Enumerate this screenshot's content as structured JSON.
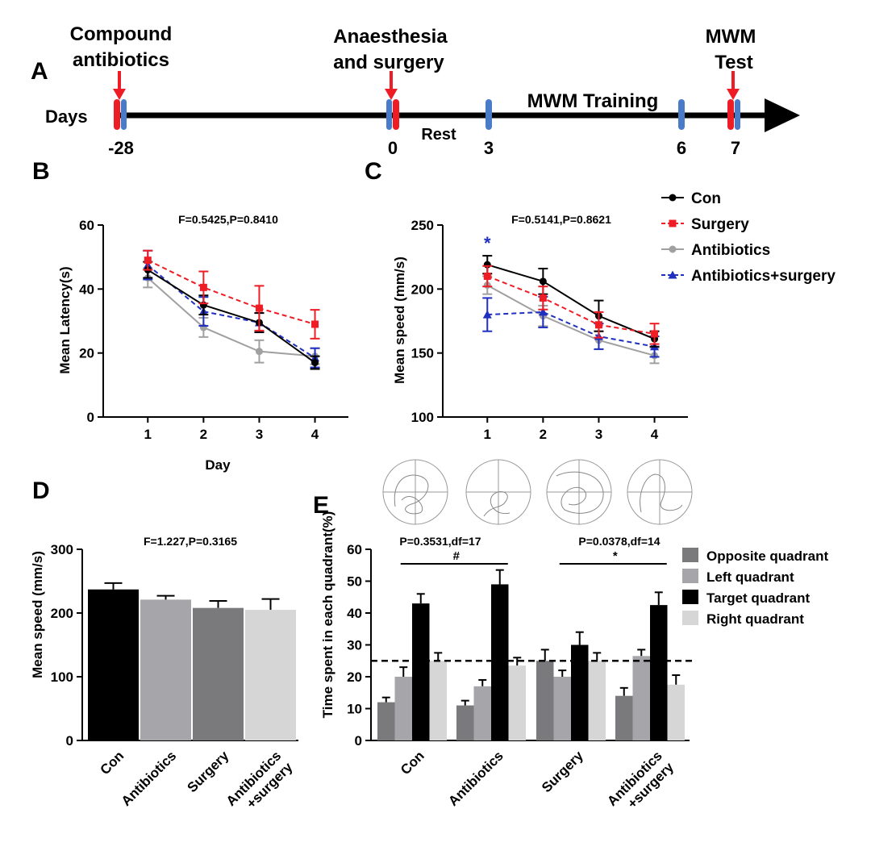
{
  "panel_letters": {
    "a": "A",
    "b": "B",
    "c": "C",
    "d": "D",
    "e": "E"
  },
  "timeline": {
    "days_label": "Days",
    "events": [
      {
        "label_line1": "Compound",
        "label_line2": "antibiotics",
        "day_label": "-28"
      },
      {
        "label_line1": "Anaesthesia",
        "label_line2": "and surgery",
        "day_label": "0"
      },
      {
        "label_line1": "MWM",
        "label_line2": "Test",
        "day_label": "7"
      }
    ],
    "rest_label": "Rest",
    "training_label": "MWM Training",
    "day3_label": "3",
    "day6_label": "6",
    "colors": {
      "axis": "#000000",
      "treatment_mark": "#ee1c25",
      "test_mark": "#4a7bc8"
    }
  },
  "legend": {
    "items": [
      {
        "name": "Con",
        "color": "#000000",
        "marker": "circle",
        "dash": false
      },
      {
        "name": "Surgery",
        "color": "#ee1c25",
        "marker": "square",
        "dash": true
      },
      {
        "name": "Antibiotics",
        "color": "#a0a0a0",
        "marker": "circle",
        "dash": false
      },
      {
        "name": "Antibiotics+surgery",
        "color": "#1f2fbf",
        "marker": "triangle",
        "dash": true
      }
    ]
  },
  "chart_data": [
    {
      "id": "B",
      "type": "line",
      "title": "F=0.5425,P=0.8410",
      "xlabel": "Day",
      "ylabel": "Mean Latency(s)",
      "x": [
        1,
        2,
        3,
        4
      ],
      "ylim": [
        0,
        60
      ],
      "yticks": [
        0,
        20,
        40,
        60
      ],
      "series": [
        {
          "name": "Con",
          "values": [
            46,
            35,
            29.5,
            17
          ],
          "errors": [
            2.5,
            3,
            3,
            2
          ]
        },
        {
          "name": "Surgery",
          "values": [
            49,
            40.5,
            34,
            29
          ],
          "errors": [
            3,
            5,
            7,
            4.5
          ]
        },
        {
          "name": "Antibiotics",
          "values": [
            43.5,
            28,
            20.5,
            19
          ],
          "errors": [
            3,
            3,
            3.5,
            2.5
          ]
        },
        {
          "name": "Antibiotics+surgery",
          "values": [
            47.5,
            33,
            29.5,
            18.5
          ],
          "errors": [
            4.5,
            4.5,
            3,
            3
          ]
        }
      ]
    },
    {
      "id": "C",
      "type": "line",
      "title": "F=0.5141,P=0.8621",
      "xlabel": "",
      "ylabel": "Mean speed (mm/s)",
      "x": [
        1,
        2,
        3,
        4
      ],
      "ylim": [
        100,
        250
      ],
      "yticks": [
        100,
        150,
        200,
        250
      ],
      "annotation": {
        "text": "*",
        "x": 1,
        "color": "#1f2fbf"
      },
      "series": [
        {
          "name": "Con",
          "values": [
            219,
            206,
            179,
            161
          ],
          "errors": [
            7,
            10,
            12,
            6
          ]
        },
        {
          "name": "Surgery",
          "values": [
            210,
            193,
            172,
            165
          ],
          "errors": [
            8,
            9,
            10,
            8
          ]
        },
        {
          "name": "Antibiotics",
          "values": [
            203,
            179,
            160,
            148
          ],
          "errors": [
            7,
            8,
            7,
            6
          ]
        },
        {
          "name": "Antibiotics+surgery",
          "values": [
            180,
            182,
            163,
            155
          ],
          "errors": [
            13,
            12,
            10,
            8
          ]
        }
      ]
    },
    {
      "id": "D",
      "type": "bar",
      "title": "F=1.227,P=0.3165",
      "ylabel": "Mean speed (mm/s)",
      "categories": [
        "Con",
        "Antibiotics",
        "Surgery",
        "Antibiotics\n+surgery"
      ],
      "values": [
        237,
        221,
        208,
        205
      ],
      "errors": [
        10,
        6,
        11,
        17
      ],
      "colors": [
        "#000000",
        "#a6a6aa",
        "#7a7a7c",
        "#d6d6d6"
      ],
      "ylim": [
        0,
        300
      ],
      "yticks": [
        0,
        100,
        200,
        300
      ]
    },
    {
      "id": "E",
      "type": "bar",
      "ylabel": "Time spent in each quadrant(%)",
      "categories": [
        "Con",
        "Antibiotics",
        "Surgery",
        "Antibiotics\n+surgery"
      ],
      "ylim": [
        0,
        60
      ],
      "yticks": [
        0,
        10,
        20,
        30,
        40,
        50,
        60
      ],
      "reference_line": 25,
      "series": [
        {
          "name": "Opposite quadrant",
          "color": "#7a7a7c",
          "values": [
            12,
            11,
            25,
            14
          ],
          "errors": [
            1.5,
            1.5,
            3.5,
            2.5
          ]
        },
        {
          "name": "Left quadrant",
          "color": "#a6a6aa",
          "values": [
            20,
            17,
            20,
            26.5
          ],
          "errors": [
            3,
            2,
            2,
            2
          ]
        },
        {
          "name": "Target quadrant",
          "color": "#000000",
          "values": [
            43,
            49,
            30,
            42.5
          ],
          "errors": [
            3,
            4.5,
            4,
            4
          ]
        },
        {
          "name": "Right quadrant",
          "color": "#d6d6d6",
          "values": [
            25,
            23.5,
            25,
            17.5
          ],
          "errors": [
            2.5,
            2.5,
            2.5,
            3
          ]
        }
      ],
      "comparisons": [
        {
          "label": "P=0.3531,df=17",
          "symbol": "#"
        },
        {
          "label": "P=0.0378,df=14",
          "symbol": "*"
        }
      ]
    }
  ]
}
